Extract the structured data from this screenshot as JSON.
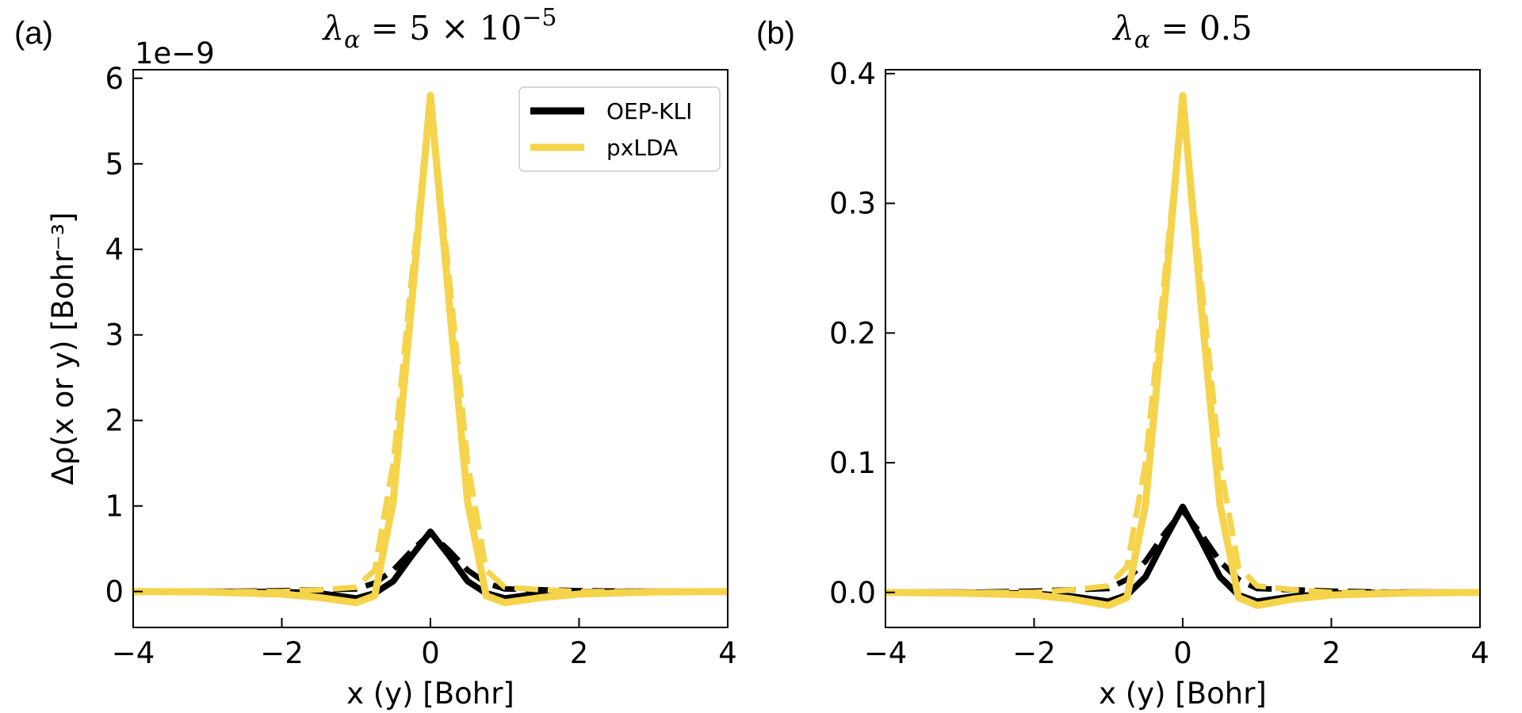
{
  "chart_data": [
    {
      "type": "line",
      "panel": "(a)",
      "title": {
        "symbol": "λ",
        "subscript": "α",
        "rest": " = 5 × 10",
        "superscript": "−5"
      },
      "xlabel": "x (y) [Bohr]",
      "ylabel": "Δρ(x or y) [Bohr⁻³]",
      "offset": "1e−9",
      "xlim": [
        -4,
        4
      ],
      "ylim": [
        -0.42,
        6.1
      ],
      "xticks": [
        -4,
        -2,
        0,
        2,
        4
      ],
      "xtick_labels": [
        "−4",
        "−2",
        "0",
        "2",
        "4"
      ],
      "yticks": [
        0,
        1,
        2,
        3,
        4,
        5,
        6
      ],
      "ytick_labels": [
        "0",
        "1",
        "2",
        "3",
        "4",
        "5",
        "6"
      ],
      "legend": [
        {
          "label": "OEP-KLI",
          "color": "#000000"
        },
        {
          "label": "pxLDA",
          "color": "#f5d44c"
        }
      ],
      "series": [
        {
          "name": "OEP-KLI (x)",
          "color": "#000000",
          "dash": "solid",
          "x": [
            -4,
            -3,
            -2,
            -1.5,
            -1,
            -0.75,
            -0.5,
            -0.25,
            0,
            0.25,
            0.5,
            0.75,
            1,
            1.5,
            2,
            3,
            4
          ],
          "y": [
            0,
            0,
            -0.005,
            -0.02,
            -0.08,
            -0.02,
            0.12,
            0.42,
            0.7,
            0.42,
            0.12,
            -0.02,
            -0.08,
            -0.02,
            -0.005,
            0,
            0
          ]
        },
        {
          "name": "OEP-KLI (y)",
          "color": "#000000",
          "dash": "dashed",
          "x": [
            -4,
            -3,
            -2,
            -1.5,
            -1,
            -0.75,
            -0.5,
            -0.25,
            0,
            0.25,
            0.5,
            0.75,
            1,
            1.5,
            2,
            3,
            4
          ],
          "y": [
            0,
            0,
            0.01,
            0.02,
            0.03,
            0.1,
            0.25,
            0.48,
            0.68,
            0.48,
            0.25,
            0.1,
            0.03,
            0.02,
            0.01,
            0,
            0
          ]
        },
        {
          "name": "pxLDA (x)",
          "color": "#f5d44c",
          "dash": "solid",
          "x": [
            -4,
            -3,
            -2,
            -1.5,
            -1,
            -0.75,
            -0.5,
            -0.25,
            0,
            0.25,
            0.5,
            0.75,
            1,
            1.5,
            2,
            3,
            4
          ],
          "y": [
            0,
            -0.005,
            -0.03,
            -0.07,
            -0.13,
            -0.05,
            1.05,
            3.4,
            5.8,
            3.4,
            1.05,
            -0.05,
            -0.13,
            -0.07,
            -0.03,
            -0.005,
            0
          ]
        },
        {
          "name": "pxLDA (y)",
          "color": "#f5d44c",
          "dash": "dashed",
          "x": [
            -4,
            -3,
            -2,
            -1.5,
            -1,
            -0.75,
            -0.5,
            -0.25,
            0,
            0.25,
            0.5,
            0.75,
            1,
            1.5,
            2,
            3,
            4
          ],
          "y": [
            0,
            0,
            0,
            0.02,
            0.05,
            0.25,
            1.5,
            3.7,
            5.75,
            3.7,
            1.5,
            0.25,
            0.05,
            0.02,
            0,
            0,
            0
          ]
        }
      ]
    },
    {
      "type": "line",
      "panel": "(b)",
      "title": {
        "symbol": "λ",
        "subscript": "α",
        "rest": " = 0.5",
        "superscript": ""
      },
      "xlabel": "x (y) [Bohr]",
      "ylabel": "",
      "offset": "",
      "xlim": [
        -4,
        4
      ],
      "ylim": [
        -0.027,
        0.403
      ],
      "xticks": [
        -4,
        -2,
        0,
        2,
        4
      ],
      "xtick_labels": [
        "−4",
        "−2",
        "0",
        "2",
        "4"
      ],
      "yticks": [
        0,
        0.1,
        0.2,
        0.3,
        0.4
      ],
      "ytick_labels": [
        "0.0",
        "0.1",
        "0.2",
        "0.3",
        "0.4"
      ],
      "legend": [],
      "series": [
        {
          "name": "OEP-KLI (x)",
          "color": "#000000",
          "dash": "solid",
          "x": [
            -4,
            -3,
            -2,
            -1.5,
            -1,
            -0.75,
            -0.5,
            -0.25,
            0,
            0.25,
            0.5,
            0.75,
            1,
            1.5,
            2,
            3,
            4
          ],
          "y": [
            0,
            0,
            -0.001,
            -0.003,
            -0.007,
            -0.002,
            0.012,
            0.04,
            0.066,
            0.04,
            0.012,
            -0.002,
            -0.007,
            -0.003,
            -0.001,
            0,
            0
          ]
        },
        {
          "name": "OEP-KLI (y)",
          "color": "#000000",
          "dash": "dashed",
          "x": [
            -4,
            -3,
            -2,
            -1.5,
            -1,
            -0.75,
            -0.5,
            -0.25,
            0,
            0.25,
            0.5,
            0.75,
            1,
            1.5,
            2,
            3,
            4
          ],
          "y": [
            0,
            0,
            0.001,
            0.002,
            0.003,
            0.01,
            0.024,
            0.045,
            0.063,
            0.045,
            0.024,
            0.01,
            0.003,
            0.002,
            0.001,
            0,
            0
          ]
        },
        {
          "name": "pxLDA (x)",
          "color": "#f5d44c",
          "dash": "solid",
          "x": [
            -4,
            -3,
            -2,
            -1.5,
            -1,
            -0.75,
            -0.5,
            -0.25,
            0,
            0.25,
            0.5,
            0.75,
            1,
            1.5,
            2,
            3,
            4
          ],
          "y": [
            0,
            -0.0005,
            -0.002,
            -0.005,
            -0.01,
            -0.004,
            0.068,
            0.22,
            0.383,
            0.22,
            0.068,
            -0.004,
            -0.01,
            -0.005,
            -0.002,
            -0.0005,
            0
          ]
        },
        {
          "name": "pxLDA (y)",
          "color": "#f5d44c",
          "dash": "dashed",
          "x": [
            -4,
            -3,
            -2,
            -1.5,
            -1,
            -0.75,
            -0.5,
            -0.25,
            0,
            0.25,
            0.5,
            0.75,
            1,
            1.5,
            2,
            3,
            4
          ],
          "y": [
            0,
            0,
            0,
            0.002,
            0.005,
            0.02,
            0.1,
            0.24,
            0.378,
            0.24,
            0.1,
            0.02,
            0.005,
            0.002,
            0,
            0,
            0
          ]
        }
      ]
    }
  ]
}
